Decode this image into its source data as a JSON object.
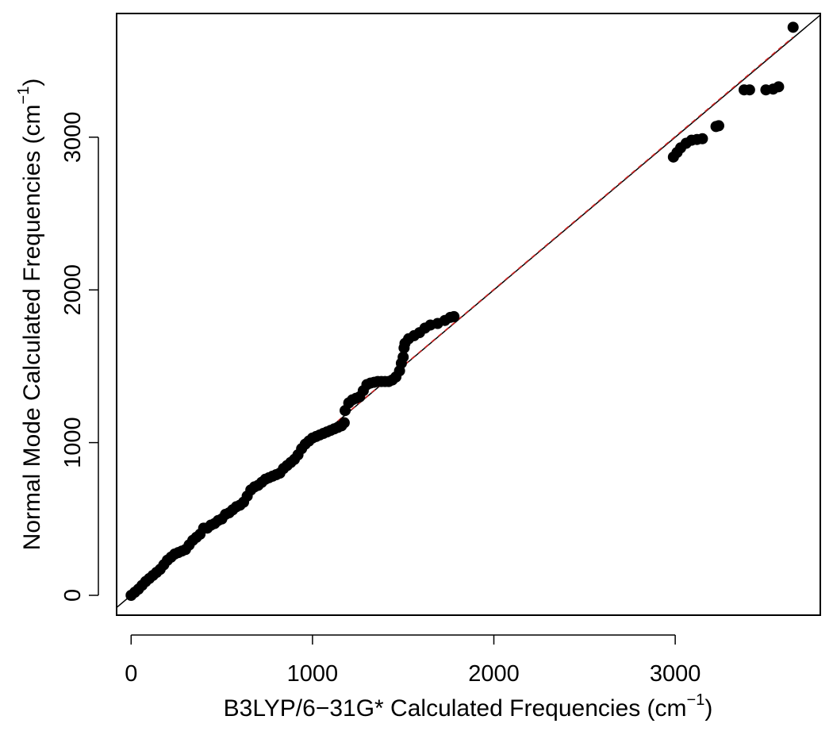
{
  "chart_data": {
    "type": "scatter",
    "title": "",
    "xlabel": {
      "text": "B3LYP/6−31G* Calculated Frequencies (cm",
      "sup": "−1",
      "close": ")"
    },
    "ylabel": {
      "text": "Normal Mode Calculated Frequencies (cm",
      "sup": "−1",
      "close": ")"
    },
    "xlim": [
      -80,
      3800
    ],
    "ylim": [
      -130,
      3810
    ],
    "x_ticks": [
      0,
      1000,
      2000,
      3000
    ],
    "x_tick_labels": [
      "0",
      "1000",
      "2000",
      "3000"
    ],
    "y_ticks": [
      0,
      1000,
      2000,
      3000
    ],
    "y_tick_labels": [
      "0",
      "1000",
      "2000",
      "3000"
    ],
    "grid": false,
    "legend": "none",
    "colors": {
      "points": "#000000",
      "identity_line": "#000000",
      "fit_line": "#cc2222"
    },
    "reference_lines": [
      {
        "name": "identity",
        "style": "solid",
        "from": [
          -100,
          -100
        ],
        "to": [
          3800,
          3800
        ]
      },
      {
        "name": "fit",
        "style": "dashed",
        "from": [
          0,
          0
        ],
        "to": [
          3650,
          3655
        ]
      }
    ],
    "points": [
      [
        0,
        0
      ],
      [
        20,
        20
      ],
      [
        40,
        40
      ],
      [
        60,
        65
      ],
      [
        80,
        90
      ],
      [
        100,
        110
      ],
      [
        120,
        130
      ],
      [
        140,
        150
      ],
      [
        160,
        170
      ],
      [
        180,
        200
      ],
      [
        200,
        230
      ],
      [
        220,
        250
      ],
      [
        240,
        270
      ],
      [
        260,
        280
      ],
      [
        280,
        290
      ],
      [
        300,
        300
      ],
      [
        320,
        330
      ],
      [
        340,
        360
      ],
      [
        360,
        380
      ],
      [
        380,
        400
      ],
      [
        400,
        440
      ],
      [
        420,
        440
      ],
      [
        440,
        460
      ],
      [
        460,
        470
      ],
      [
        480,
        490
      ],
      [
        500,
        500
      ],
      [
        520,
        530
      ],
      [
        540,
        540
      ],
      [
        560,
        560
      ],
      [
        580,
        580
      ],
      [
        600,
        590
      ],
      [
        620,
        610
      ],
      [
        640,
        650
      ],
      [
        660,
        690
      ],
      [
        680,
        710
      ],
      [
        700,
        720
      ],
      [
        720,
        740
      ],
      [
        740,
        760
      ],
      [
        760,
        770
      ],
      [
        780,
        780
      ],
      [
        800,
        790
      ],
      [
        820,
        800
      ],
      [
        840,
        830
      ],
      [
        860,
        850
      ],
      [
        880,
        870
      ],
      [
        900,
        890
      ],
      [
        920,
        920
      ],
      [
        940,
        960
      ],
      [
        960,
        990
      ],
      [
        980,
        1010
      ],
      [
        1000,
        1030
      ],
      [
        1020,
        1040
      ],
      [
        1040,
        1050
      ],
      [
        1060,
        1060
      ],
      [
        1080,
        1070
      ],
      [
        1100,
        1080
      ],
      [
        1120,
        1090
      ],
      [
        1140,
        1100
      ],
      [
        1160,
        1110
      ],
      [
        1175,
        1130
      ],
      [
        1180,
        1210
      ],
      [
        1200,
        1260
      ],
      [
        1220,
        1280
      ],
      [
        1240,
        1290
      ],
      [
        1260,
        1300
      ],
      [
        1280,
        1340
      ],
      [
        1300,
        1380
      ],
      [
        1320,
        1390
      ],
      [
        1340,
        1395
      ],
      [
        1360,
        1400
      ],
      [
        1380,
        1400
      ],
      [
        1400,
        1400
      ],
      [
        1420,
        1400
      ],
      [
        1440,
        1410
      ],
      [
        1460,
        1430
      ],
      [
        1480,
        1470
      ],
      [
        1490,
        1520
      ],
      [
        1500,
        1560
      ],
      [
        1505,
        1620
      ],
      [
        1510,
        1650
      ],
      [
        1530,
        1680
      ],
      [
        1560,
        1700
      ],
      [
        1590,
        1720
      ],
      [
        1620,
        1750
      ],
      [
        1650,
        1770
      ],
      [
        1690,
        1780
      ],
      [
        1730,
        1800
      ],
      [
        1760,
        1820
      ],
      [
        1780,
        1825
      ],
      [
        2990,
        2870
      ],
      [
        3010,
        2900
      ],
      [
        3030,
        2930
      ],
      [
        3060,
        2960
      ],
      [
        3090,
        2980
      ],
      [
        3120,
        2985
      ],
      [
        3150,
        2990
      ],
      [
        3225,
        3070
      ],
      [
        3240,
        3075
      ],
      [
        3380,
        3310
      ],
      [
        3410,
        3310
      ],
      [
        3500,
        3310
      ],
      [
        3540,
        3315
      ],
      [
        3570,
        3330
      ],
      [
        3650,
        3720
      ]
    ]
  }
}
